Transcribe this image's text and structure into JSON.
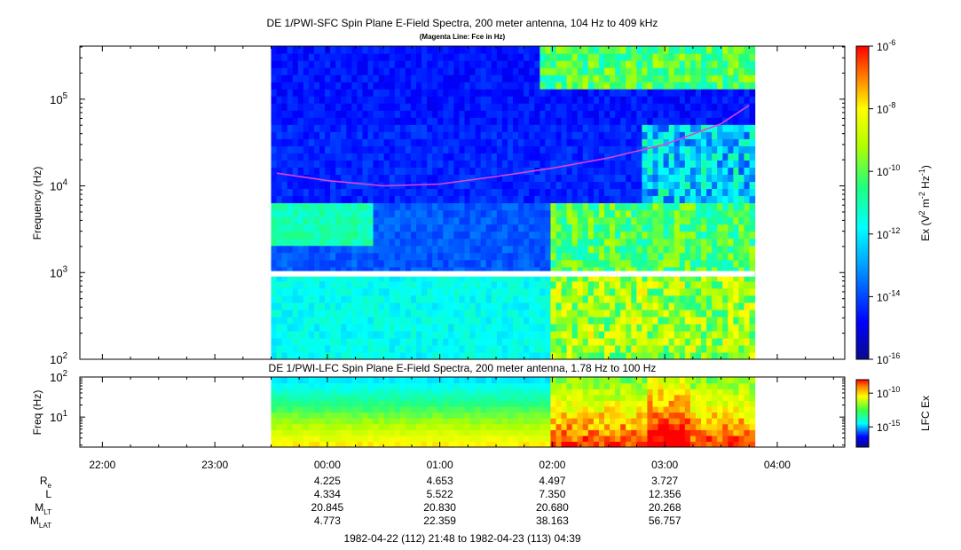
{
  "chart_data": [
    {
      "type": "heatmap",
      "title": "DE 1/PWI-SFC  Spin Plane E-Field Spectra, 200 meter antenna, 104 Hz to 409 kHz",
      "subtitle": "(Magenta Line: Fce in Hz)",
      "ylabel": "Frequency (Hz)",
      "yscale": "log",
      "ylim": [
        100,
        409000
      ],
      "yticks": [
        {
          "base": "10",
          "exp": "2",
          "value": 100
        },
        {
          "base": "10",
          "exp": "3",
          "value": 1000
        },
        {
          "base": "10",
          "exp": "4",
          "value": 10000
        },
        {
          "base": "10",
          "exp": "5",
          "value": 100000
        }
      ],
      "data_time_range_hours": [
        23.5,
        27.8
      ],
      "colorbar": {
        "label_parts": [
          "Ex (V",
          "2",
          " m",
          "-2",
          " Hz",
          "-1",
          ")"
        ],
        "scale": "log",
        "range": [
          1e-16,
          1e-06
        ],
        "ticks": [
          {
            "base": "10",
            "exp": "-6",
            "value": -6
          },
          {
            "base": "10",
            "exp": "-8",
            "value": -8
          },
          {
            "base": "10",
            "exp": "-10",
            "value": -10
          },
          {
            "base": "10",
            "exp": "-12",
            "value": -12
          },
          {
            "base": "10",
            "exp": "-14",
            "value": -14
          },
          {
            "base": "10",
            "exp": "-16",
            "value": -16
          }
        ]
      },
      "fce_line": {
        "color": "#e040e0",
        "x_hours": [
          23.55,
          24.0,
          24.5,
          25.0,
          25.5,
          26.0,
          26.5,
          27.0,
          27.5,
          27.75
        ],
        "y_hz": [
          14000,
          11500,
          10000,
          10500,
          12800,
          16000,
          21000,
          30000,
          52000,
          85000
        ]
      }
    },
    {
      "type": "heatmap",
      "title": "DE 1/PWI-LFC  Spin Plane E-Field Spectra, 200 meter antenna, 1.78 Hz to 100 Hz",
      "ylabel": "Freq (Hz)",
      "yscale": "log",
      "ylim": [
        1.78,
        100
      ],
      "yticks": [
        {
          "base": "10",
          "exp": "1",
          "value": 10
        },
        {
          "base": "10",
          "exp": "2",
          "value": 100
        }
      ],
      "data_time_range_hours": [
        23.5,
        27.8
      ],
      "colorbar": {
        "label": "LFC Ex",
        "scale": "log",
        "ticks": [
          {
            "base": "10",
            "exp": "-10",
            "value": -10
          },
          {
            "base": "10",
            "exp": "-15",
            "value": -15
          }
        ]
      }
    }
  ],
  "x_axis": {
    "xlim_hours": [
      21.8,
      28.6
    ],
    "ticks": [
      {
        "label": "22:00",
        "hour": 22
      },
      {
        "label": "23:00",
        "hour": 23
      },
      {
        "label": "00:00",
        "hour": 24
      },
      {
        "label": "01:00",
        "hour": 25
      },
      {
        "label": "02:00",
        "hour": 26
      },
      {
        "label": "03:00",
        "hour": 27
      },
      {
        "label": "04:00",
        "hour": 28
      }
    ]
  },
  "ephemeris": {
    "rows": [
      {
        "name": "R",
        "sub": "e",
        "values": [
          "4.225",
          "4.653",
          "4.497",
          "3.727"
        ]
      },
      {
        "name": "L",
        "sub": "",
        "values": [
          "4.334",
          "5.522",
          "7.350",
          "12.356"
        ]
      },
      {
        "name": "M",
        "sub": "LT",
        "values": [
          "20.845",
          "20.830",
          "20.680",
          "20.268"
        ]
      },
      {
        "name": "M",
        "sub": "LAT",
        "values": [
          "4.773",
          "22.359",
          "38.163",
          "56.757"
        ]
      }
    ],
    "column_hours": [
      24,
      25,
      26,
      27
    ]
  },
  "time_range": "1982-04-22 (112) 21:48 to 1982-04-23 (113) 04:39"
}
